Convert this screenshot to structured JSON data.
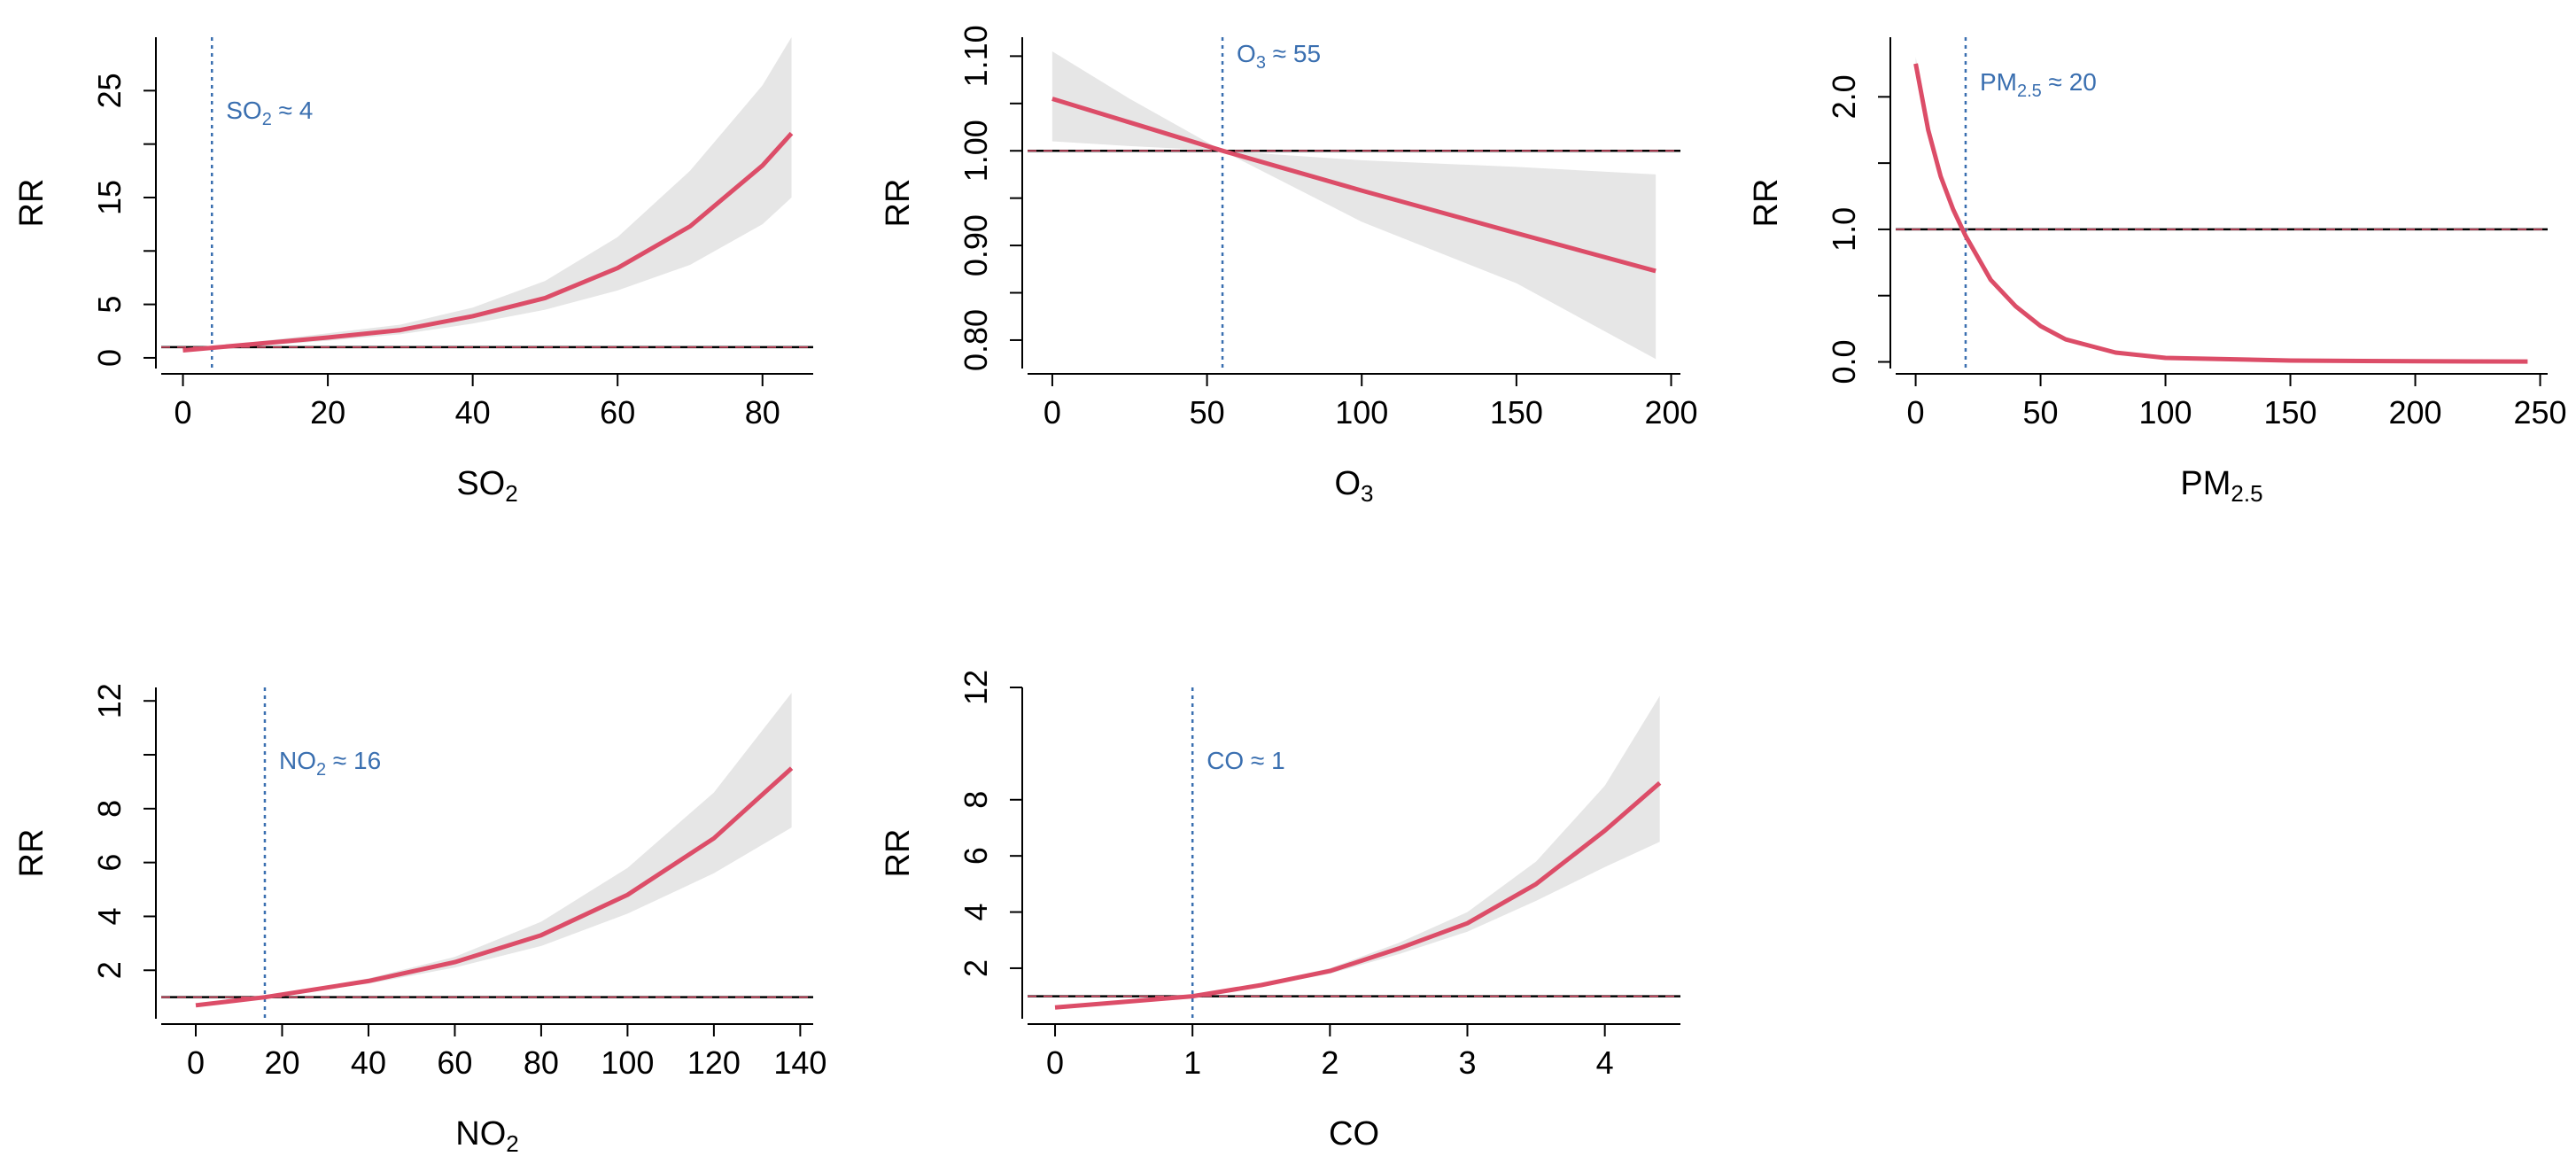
{
  "chart_data": [
    {
      "type": "line",
      "panel": "SO2",
      "xlabel": "SO",
      "xlabel_sub": "2",
      "ylabel": "RR",
      "xlim": [
        -3,
        87
      ],
      "ylim": [
        -1,
        30
      ],
      "xticks": [
        0,
        20,
        40,
        60,
        80
      ],
      "yticks": [
        0,
        5,
        10,
        15,
        20,
        25
      ],
      "yticks_labeled": [
        0,
        5,
        15,
        25
      ],
      "reference_line": 1,
      "threshold": 4,
      "annotation": {
        "base": "SO",
        "sub": "2",
        "rest": " ≈ 4"
      },
      "series": [
        {
          "name": "RR",
          "x": [
            0,
            10,
            20,
            30,
            40,
            50,
            60,
            70,
            80,
            84
          ],
          "y": [
            0.7,
            1.3,
            1.9,
            2.6,
            3.9,
            5.6,
            8.4,
            12.3,
            18.0,
            21.0
          ],
          "lower": [
            0.6,
            1.1,
            1.6,
            2.2,
            3.2,
            4.5,
            6.3,
            8.7,
            12.5,
            15.0
          ],
          "upper": [
            0.8,
            1.5,
            2.3,
            3.1,
            4.7,
            7.2,
            11.3,
            17.5,
            25.5,
            30.0
          ]
        }
      ]
    },
    {
      "type": "line",
      "panel": "O3",
      "xlabel": "O",
      "xlabel_sub": "3",
      "ylabel": "RR",
      "xlim": [
        -8,
        203
      ],
      "ylim": [
        0.77,
        1.12
      ],
      "xticks": [
        0,
        50,
        100,
        150,
        200
      ],
      "yticks": [
        0.8,
        0.85,
        0.9,
        0.95,
        1.0,
        1.05,
        1.1
      ],
      "yticks_labeled": [
        0.8,
        0.9,
        1.0,
        1.1
      ],
      "ytick_labels": [
        "0.80",
        "0.90",
        "1.00",
        "1.10"
      ],
      "reference_line": 1,
      "threshold": 55,
      "annotation": {
        "base": "O",
        "sub": "3",
        "rest": " ≈ 55"
      },
      "series": [
        {
          "name": "RR",
          "x": [
            0,
            25,
            55,
            100,
            150,
            195
          ],
          "y": [
            1.055,
            1.03,
            1.0,
            0.958,
            0.913,
            0.873
          ],
          "lower": [
            1.01,
            1.005,
            1.0,
            0.925,
            0.86,
            0.78
          ],
          "upper": [
            1.105,
            1.055,
            1.0,
            0.99,
            0.983,
            0.975
          ]
        }
      ]
    },
    {
      "type": "line",
      "panel": "PM2.5",
      "xlabel": "PM",
      "xlabel_sub": "2.5",
      "ylabel": "RR",
      "xlim": [
        -8,
        253
      ],
      "ylim": [
        -0.05,
        2.45
      ],
      "xticks": [
        0,
        50,
        100,
        150,
        200,
        250
      ],
      "yticks": [
        0,
        0.5,
        1.0,
        1.5,
        2.0
      ],
      "yticks_labeled": [
        0,
        1.0,
        2.0
      ],
      "ytick_labels": [
        "0.0",
        "1.0",
        "2.0"
      ],
      "reference_line": 1,
      "threshold": 20,
      "annotation": {
        "base": "PM",
        "sub": "2.5",
        "rest": " ≈ 20"
      },
      "series": [
        {
          "name": "RR",
          "x": [
            0,
            5,
            10,
            15,
            20,
            30,
            40,
            50,
            60,
            80,
            100,
            150,
            200,
            245
          ],
          "y": [
            2.25,
            1.75,
            1.4,
            1.15,
            0.95,
            0.62,
            0.42,
            0.27,
            0.17,
            0.07,
            0.03,
            0.01,
            0.005,
            0.003
          ],
          "lower": [
            2.2,
            1.7,
            1.36,
            1.12,
            0.92,
            0.6,
            0.4,
            0.26,
            0.16,
            0.065,
            0.028,
            0.009,
            0.004,
            0.002
          ],
          "upper": [
            2.3,
            1.8,
            1.44,
            1.18,
            0.98,
            0.64,
            0.44,
            0.28,
            0.18,
            0.075,
            0.032,
            0.011,
            0.006,
            0.004
          ]
        }
      ]
    },
    {
      "type": "line",
      "panel": "NO2",
      "xlabel": "NO",
      "xlabel_sub": "2",
      "ylabel": "RR",
      "xlim": [
        -8,
        143
      ],
      "ylim": [
        0.2,
        12.5
      ],
      "xticks": [
        0,
        20,
        40,
        60,
        80,
        100,
        120,
        140
      ],
      "yticks": [
        2,
        4,
        6,
        8,
        10,
        12
      ],
      "yticks_labeled": [
        2,
        4,
        6,
        8,
        12
      ],
      "reference_line": 1,
      "threshold": 16,
      "annotation": {
        "base": "NO",
        "sub": "2",
        "rest": " ≈ 16"
      },
      "series": [
        {
          "name": "RR",
          "x": [
            0,
            16,
            40,
            60,
            80,
            100,
            120,
            138
          ],
          "y": [
            0.7,
            1.0,
            1.6,
            2.3,
            3.3,
            4.8,
            6.9,
            9.5
          ],
          "lower": [
            0.65,
            1.0,
            1.5,
            2.1,
            2.9,
            4.1,
            5.6,
            7.3
          ],
          "upper": [
            0.75,
            1.0,
            1.7,
            2.5,
            3.8,
            5.8,
            8.6,
            12.3
          ]
        }
      ]
    },
    {
      "type": "line",
      "panel": "CO",
      "xlabel": "CO",
      "xlabel_sub": "",
      "ylabel": "RR",
      "xlim": [
        -0.2,
        4.55
      ],
      "ylim": [
        0.2,
        12.0
      ],
      "xticks": [
        0,
        1,
        2,
        3,
        4
      ],
      "yticks": [
        2,
        4,
        6,
        8,
        12
      ],
      "yticks_labeled": [
        2,
        4,
        6,
        8,
        12
      ],
      "reference_line": 1,
      "threshold": 1,
      "annotation": {
        "base": "CO",
        "sub": "",
        "rest": " ≈ 1"
      },
      "series": [
        {
          "name": "RR",
          "x": [
            0,
            0.5,
            1,
            1.5,
            2,
            2.5,
            3,
            3.5,
            4,
            4.4
          ],
          "y": [
            0.6,
            0.8,
            1.0,
            1.4,
            1.9,
            2.7,
            3.6,
            5.0,
            6.9,
            8.6
          ],
          "lower": [
            0.55,
            0.75,
            1.0,
            1.35,
            1.8,
            2.5,
            3.3,
            4.4,
            5.6,
            6.5
          ],
          "upper": [
            0.65,
            0.85,
            1.0,
            1.45,
            2.0,
            2.9,
            4.0,
            5.8,
            8.5,
            11.7
          ]
        }
      ]
    }
  ],
  "colors": {
    "curve": "#dc4d68",
    "band": "#e6e6e6",
    "threshold": "#3a6fb0",
    "axis": "#000000",
    "reference": "#000000"
  }
}
